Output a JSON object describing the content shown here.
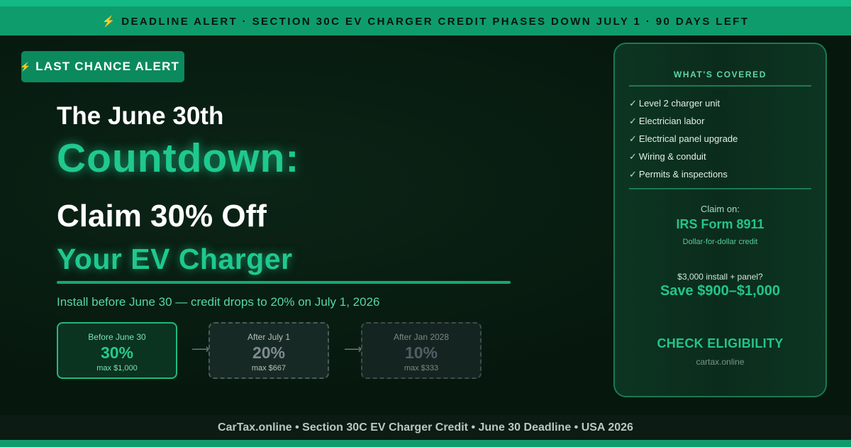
{
  "top_banner": "⚡ DEADLINE ALERT · SECTION 30C EV CHARGER CREDIT PHASES DOWN JULY 1 · 90 DAYS LEFT",
  "badge": {
    "icon": "lightning-bolt",
    "label": "LAST CHANCE ALERT"
  },
  "headline": {
    "line1": "The June 30th",
    "line2": "Countdown:",
    "line3": "Claim 30% Off",
    "line4": "Your EV Charger"
  },
  "subtitle": "Install before June 30 — credit drops to 20% on July 1, 2026",
  "phases": [
    {
      "label": "Before June 30",
      "percent": "30%",
      "max": "max $1,000"
    },
    {
      "label": "After July 1",
      "percent": "20%",
      "max": "max $667"
    },
    {
      "label": "After Jan 2028",
      "percent": "10%",
      "max": "max $333"
    }
  ],
  "panel": {
    "title": "WHAT'S COVERED",
    "items": [
      "Level 2 charger unit",
      "Electrician labor",
      "Electrical panel upgrade",
      "Wiring & conduit",
      "Permits & inspections"
    ],
    "check_glyph": "✓",
    "claim_label": "Claim on:",
    "form": "IRS Form 8911",
    "form_note": "Dollar-for-dollar credit",
    "example": "$3,000 install + panel?",
    "savings": "Save $900–$1,000",
    "cta": "CHECK ELIGIBILITY",
    "site": "cartax.online"
  },
  "footer": "CarTax.online • Section 30C EV Charger Credit • June 30 Deadline • USA 2026",
  "colors": {
    "accent": "#1fc98e",
    "banner": "#0f9c6c",
    "background": "#07190f"
  }
}
